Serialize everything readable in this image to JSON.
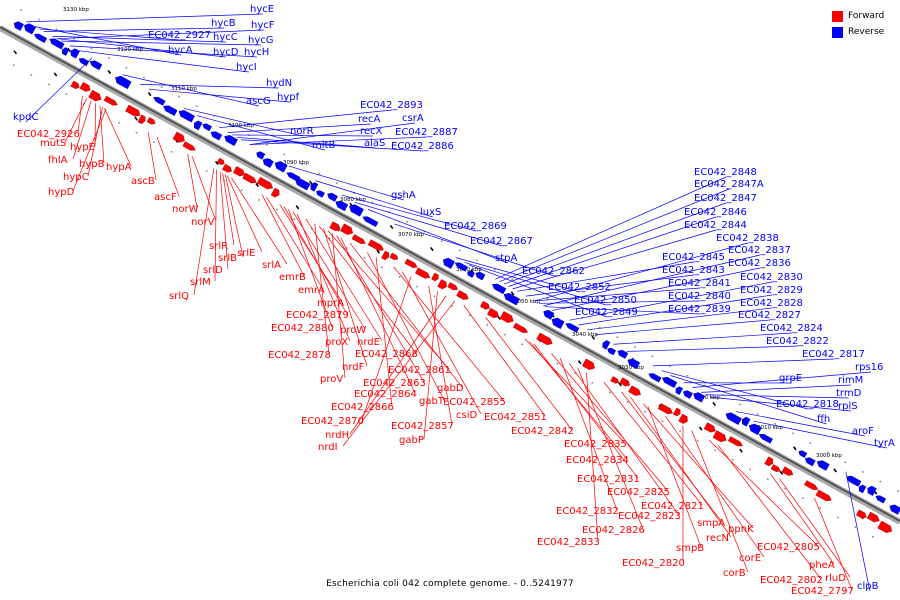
{
  "legend": {
    "forward_label": "Forward",
    "reverse_label": "Reverse",
    "forward_color": "#ff0000",
    "reverse_color": "#0000ff"
  },
  "caption": "Escherichia coli 042 complete genome. - 0..5241977",
  "ticks": [
    "3130 kbp",
    "3120 kbp",
    "3110 kbp",
    "3100 kbp",
    "3090 kbp",
    "3080 kbp",
    "3070 kbp",
    "3060 kbp",
    "3050 kbp",
    "3040 kbp",
    "3030 kbp",
    "3020 kbp",
    "3010 kbp",
    "3000 kbp"
  ],
  "reverse_genes": [
    "hycE",
    "hycB",
    "hycF",
    "EC042_2927",
    "hycC",
    "hycG",
    "hycA",
    "hycD",
    "hycH",
    "hycI",
    "kpdC",
    "hydN",
    "ascG",
    "hypf",
    "norR",
    "mltB",
    "EC042_2893",
    "recA",
    "csrA",
    "recX",
    "EC042_2887",
    "alaS",
    "EC042_2886",
    "gshA",
    "luxS",
    "EC042_2869",
    "EC042_2867",
    "stpA",
    "EC042_2862",
    "EC042_2852",
    "EC042_2850",
    "EC042_2849",
    "EC042_2848",
    "EC042_2847A",
    "EC042_2847",
    "EC042_2846",
    "EC042_2844",
    "EC042_2838",
    "EC042_2845",
    "EC042_2837",
    "EC042_2843",
    "EC042_2836",
    "EC042_2841",
    "EC042_2830",
    "EC042_2840",
    "EC042_2829",
    "EC042_2839",
    "EC042_2828",
    "EC042_2827",
    "EC042_2824",
    "EC042_2822",
    "EC042_2817",
    "rps16",
    "grpE",
    "rimM",
    "trmD",
    "EC042_2818",
    "rplS",
    "ffh",
    "aroF",
    "tyrA",
    "clpB"
  ],
  "forward_genes": [
    "EC042_2926",
    "mutS",
    "fhlA",
    "hypE",
    "hypB",
    "hypA",
    "hypC",
    "hypD",
    "ascB",
    "ascF",
    "norW",
    "norV",
    "srlR",
    "srlE",
    "srlB",
    "srlA",
    "srlD",
    "srlM",
    "srlQ",
    "emrB",
    "emrA",
    "mprA",
    "EC042_2879",
    "EC042_2880",
    "proW",
    "proX",
    "nrdE",
    "EC042_2878",
    "EC042_2868",
    "nrdF",
    "EC042_2861",
    "proV",
    "EC042_2863",
    "gabD",
    "EC042_2864",
    "gabT",
    "EC042_2855",
    "EC042_2866",
    "csiD",
    "EC042_2870",
    "EC042_2851",
    "EC042_2857",
    "nrdH",
    "gabP",
    "nrdI",
    "EC042_2842",
    "EC042_2835",
    "EC042_2834",
    "EC042_2831",
    "EC042_2825",
    "EC042_2821",
    "EC042_2832",
    "EC042_2823",
    "EC042_2826",
    "smpA",
    "EC042_2833",
    "recN",
    "ppnK",
    "smpB",
    "corE",
    "EC042_2805",
    "EC042_2820",
    "corB",
    "pheA",
    "EC042_2802",
    "rluD",
    "EC042_2797"
  ]
}
